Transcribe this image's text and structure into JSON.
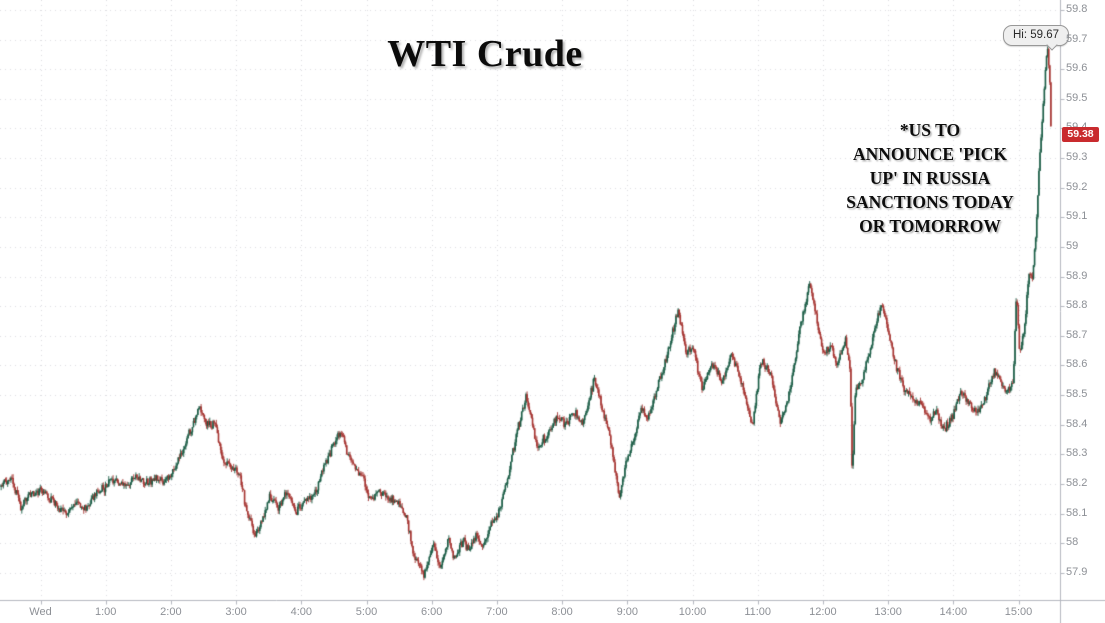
{
  "title": "WTI Crude",
  "annotation": {
    "text": "*US TO\nANNOUNCE 'PICK\nUP' IN RUSSIA\nSANCTIONS TODAY\nOR TOMORROW"
  },
  "hi_tooltip": {
    "label": "Hi: 59.67"
  },
  "price_badge": {
    "value": "59.38",
    "color": "#c92b2e"
  },
  "axes": {
    "x_labels": [
      [
        0,
        "Wed"
      ],
      [
        1,
        "1:00"
      ],
      [
        2,
        "2:00"
      ],
      [
        3,
        "3:00"
      ],
      [
        4,
        "4:00"
      ],
      [
        5,
        "5:00"
      ],
      [
        6,
        "6:00"
      ],
      [
        7,
        "7:00"
      ],
      [
        8,
        "8:00"
      ],
      [
        9,
        "9:00"
      ],
      [
        10,
        "10:00"
      ],
      [
        11,
        "11:00"
      ],
      [
        12,
        "12:00"
      ],
      [
        13,
        "13:00"
      ],
      [
        14,
        "14:00"
      ],
      [
        15,
        "15:00"
      ]
    ],
    "y_ticks": [
      [
        59.8,
        "59.8"
      ],
      [
        59.7,
        "59.7"
      ],
      [
        59.6,
        "59.6"
      ],
      [
        59.5,
        "59.5"
      ],
      [
        59.4,
        "59.4"
      ],
      [
        59.3,
        "59.3"
      ],
      [
        59.2,
        "59.2"
      ],
      [
        59.1,
        "59.1"
      ],
      [
        59.0,
        "59"
      ],
      [
        58.9,
        "58.9"
      ],
      [
        58.8,
        "58.8"
      ],
      [
        58.7,
        "58.7"
      ],
      [
        58.6,
        "58.6"
      ],
      [
        58.5,
        "58.5"
      ],
      [
        58.4,
        "58.4"
      ],
      [
        58.3,
        "58.3"
      ],
      [
        58.2,
        "58.2"
      ],
      [
        58.1,
        "58.1"
      ],
      [
        58.0,
        "58"
      ],
      [
        57.9,
        "57.9"
      ]
    ]
  },
  "chart_data": {
    "type": "candlestick",
    "title": "WTI Crude",
    "x_unit": "hours_from_wed_midnight",
    "x_range": [
      -0.62,
      15.5
    ],
    "y_range": [
      57.8,
      59.85
    ],
    "session_high": 59.67,
    "last_price": 59.38,
    "up_color": "#1a5c45",
    "down_color": "#a63532",
    "grid_color": "#dcdce0",
    "axis_color": "#b4b7bf",
    "price_path": [
      [
        -0.62,
        58.19
      ],
      [
        -0.45,
        58.22
      ],
      [
        -0.3,
        58.12
      ],
      [
        -0.18,
        58.16
      ],
      [
        0.0,
        58.18
      ],
      [
        0.15,
        58.15
      ],
      [
        0.3,
        58.12
      ],
      [
        0.42,
        58.1
      ],
      [
        0.55,
        58.14
      ],
      [
        0.7,
        58.12
      ],
      [
        0.85,
        58.17
      ],
      [
        1.0,
        58.19
      ],
      [
        1.15,
        58.22
      ],
      [
        1.3,
        58.19
      ],
      [
        1.45,
        58.23
      ],
      [
        1.6,
        58.2
      ],
      [
        1.75,
        58.22
      ],
      [
        1.9,
        58.21
      ],
      [
        2.0,
        58.23
      ],
      [
        2.15,
        58.3
      ],
      [
        2.3,
        58.38
      ],
      [
        2.45,
        58.46
      ],
      [
        2.55,
        58.4
      ],
      [
        2.68,
        58.4
      ],
      [
        2.8,
        58.28
      ],
      [
        2.95,
        58.26
      ],
      [
        3.05,
        58.24
      ],
      [
        3.15,
        58.12
      ],
      [
        3.3,
        58.02
      ],
      [
        3.42,
        58.09
      ],
      [
        3.52,
        58.16
      ],
      [
        3.65,
        58.12
      ],
      [
        3.78,
        58.17
      ],
      [
        3.92,
        58.11
      ],
      [
        4.05,
        58.14
      ],
      [
        4.2,
        58.16
      ],
      [
        4.35,
        58.26
      ],
      [
        4.6,
        58.38
      ],
      [
        4.72,
        58.3
      ],
      [
        4.82,
        58.26
      ],
      [
        4.95,
        58.22
      ],
      [
        5.05,
        58.14
      ],
      [
        5.2,
        58.18
      ],
      [
        5.35,
        58.15
      ],
      [
        5.5,
        58.13
      ],
      [
        5.62,
        58.08
      ],
      [
        5.72,
        57.97
      ],
      [
        5.88,
        57.89
      ],
      [
        6.02,
        58.0
      ],
      [
        6.12,
        57.92
      ],
      [
        6.25,
        58.01
      ],
      [
        6.35,
        57.95
      ],
      [
        6.48,
        58.01
      ],
      [
        6.58,
        57.97
      ],
      [
        6.68,
        58.03
      ],
      [
        6.78,
        57.99
      ],
      [
        6.9,
        58.06
      ],
      [
        7.02,
        58.1
      ],
      [
        7.15,
        58.2
      ],
      [
        7.3,
        58.37
      ],
      [
        7.45,
        58.49
      ],
      [
        7.55,
        58.4
      ],
      [
        7.62,
        58.32
      ],
      [
        7.78,
        58.37
      ],
      [
        7.92,
        58.43
      ],
      [
        8.05,
        58.4
      ],
      [
        8.2,
        58.44
      ],
      [
        8.32,
        58.4
      ],
      [
        8.5,
        58.56
      ],
      [
        8.6,
        58.46
      ],
      [
        8.7,
        58.4
      ],
      [
        8.8,
        58.27
      ],
      [
        8.88,
        58.15
      ],
      [
        8.98,
        58.27
      ],
      [
        9.1,
        58.35
      ],
      [
        9.22,
        58.46
      ],
      [
        9.32,
        58.42
      ],
      [
        9.45,
        58.52
      ],
      [
        9.6,
        58.62
      ],
      [
        9.78,
        58.79
      ],
      [
        9.9,
        58.64
      ],
      [
        10.0,
        58.67
      ],
      [
        10.15,
        58.52
      ],
      [
        10.3,
        58.61
      ],
      [
        10.45,
        58.54
      ],
      [
        10.6,
        58.64
      ],
      [
        10.78,
        58.52
      ],
      [
        10.92,
        58.39
      ],
      [
        11.05,
        58.62
      ],
      [
        11.2,
        58.57
      ],
      [
        11.35,
        58.4
      ],
      [
        11.5,
        58.52
      ],
      [
        11.65,
        58.73
      ],
      [
        11.8,
        58.88
      ],
      [
        11.92,
        58.74
      ],
      [
        12.02,
        58.63
      ],
      [
        12.12,
        58.67
      ],
      [
        12.22,
        58.6
      ],
      [
        12.35,
        58.69
      ],
      [
        12.42,
        58.58
      ],
      [
        12.45,
        58.22
      ],
      [
        12.5,
        58.52
      ],
      [
        12.6,
        58.55
      ],
      [
        12.72,
        58.65
      ],
      [
        12.9,
        58.81
      ],
      [
        13.02,
        58.69
      ],
      [
        13.12,
        58.6
      ],
      [
        13.25,
        58.52
      ],
      [
        13.4,
        58.48
      ],
      [
        13.55,
        58.46
      ],
      [
        13.65,
        58.42
      ],
      [
        13.75,
        58.45
      ],
      [
        13.85,
        58.38
      ],
      [
        14.0,
        58.43
      ],
      [
        14.12,
        58.51
      ],
      [
        14.25,
        58.47
      ],
      [
        14.38,
        58.44
      ],
      [
        14.5,
        58.49
      ],
      [
        14.62,
        58.58
      ],
      [
        14.72,
        58.55
      ],
      [
        14.82,
        58.51
      ],
      [
        14.92,
        58.54
      ],
      [
        14.97,
        58.86
      ],
      [
        15.02,
        58.63
      ],
      [
        15.1,
        58.74
      ],
      [
        15.16,
        58.92
      ],
      [
        15.21,
        58.89
      ],
      [
        15.27,
        59.05
      ],
      [
        15.32,
        59.29
      ],
      [
        15.38,
        59.48
      ],
      [
        15.42,
        59.62
      ],
      [
        15.45,
        59.67
      ],
      [
        15.48,
        59.55
      ],
      [
        15.5,
        59.38
      ]
    ]
  }
}
